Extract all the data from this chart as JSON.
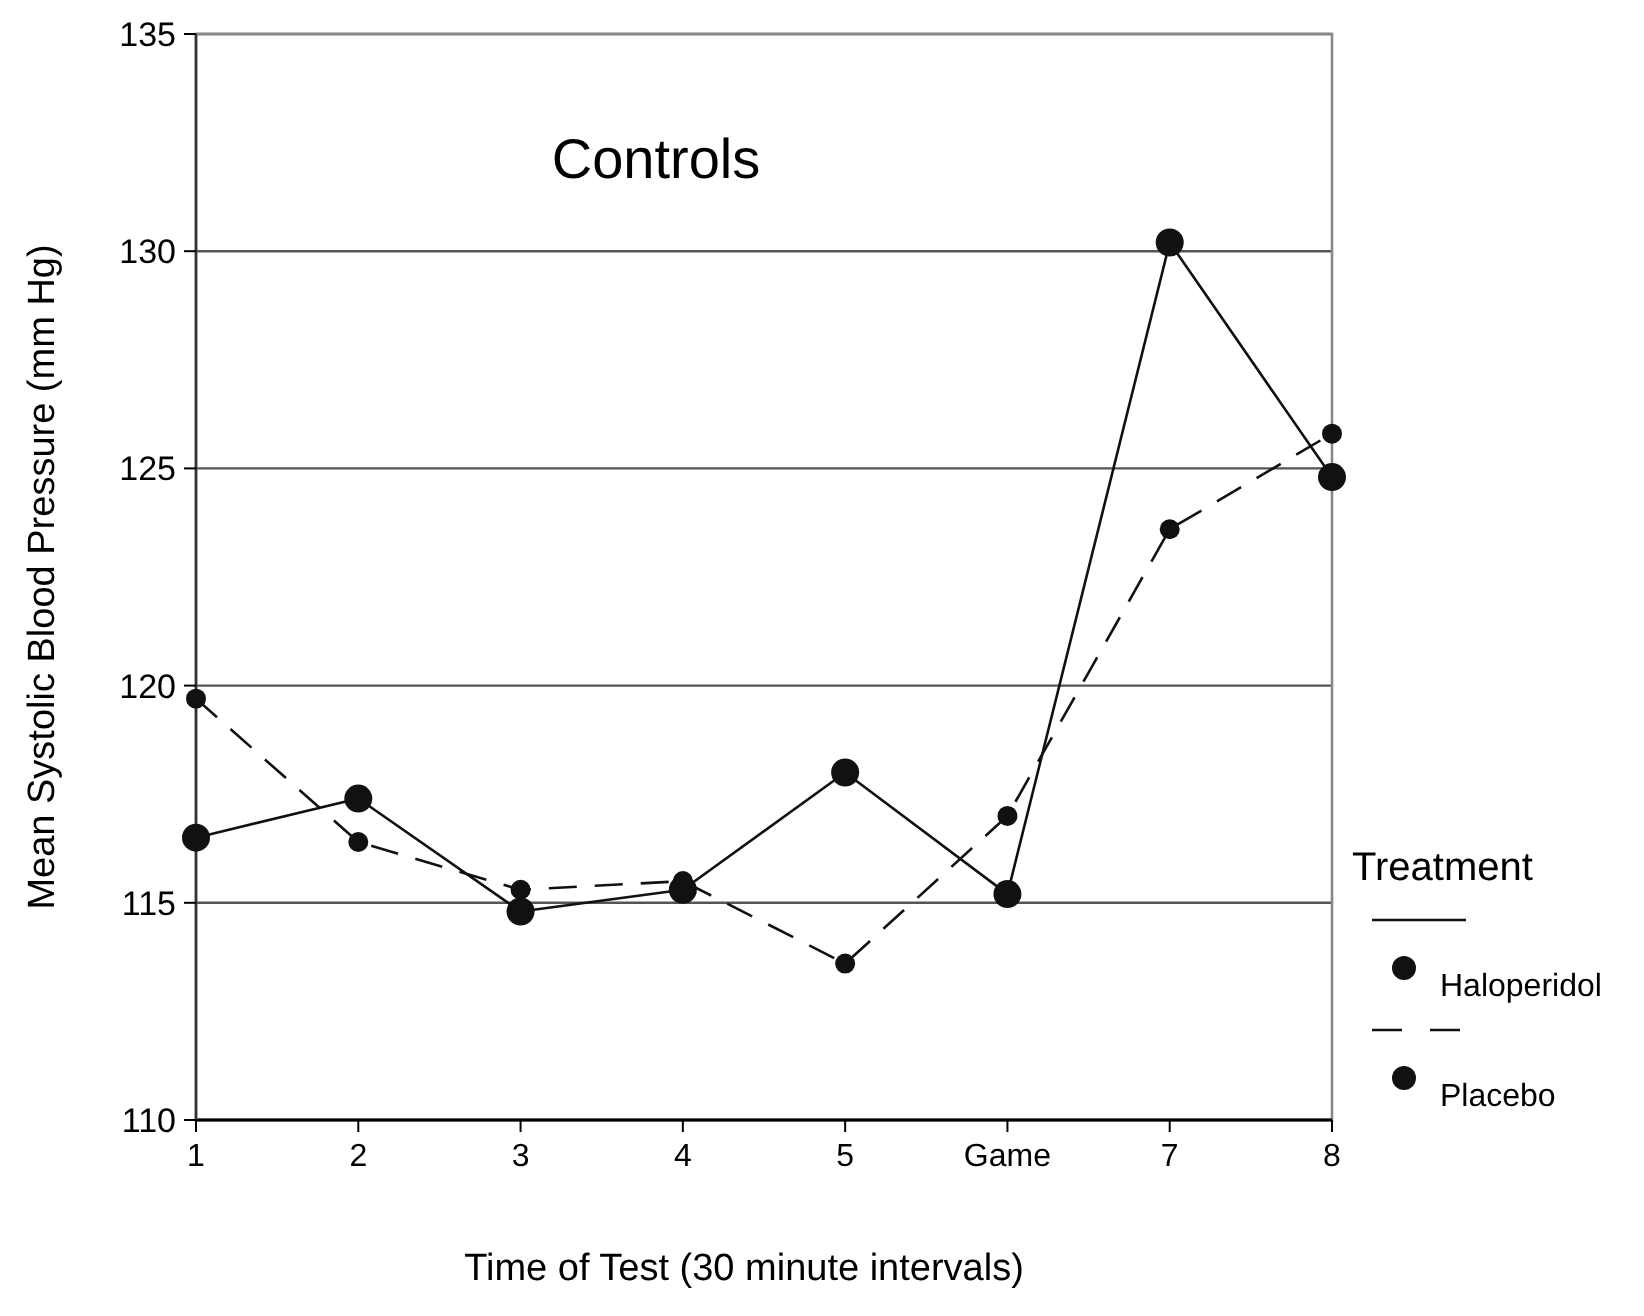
{
  "chart_data": {
    "type": "line",
    "title": "Controls",
    "xlabel": "Time of Test (30 minute intervals)",
    "ylabel": "Mean Systolic Blood Pressure (mm Hg)",
    "legend_title": "Treatment",
    "categories": [
      "1",
      "2",
      "3",
      "4",
      "5",
      "Game",
      "7",
      "8"
    ],
    "series": [
      {
        "name": "Haloperidol",
        "color": "#111111",
        "line_style": "solid",
        "values": [
          116.5,
          117.4,
          114.8,
          115.3,
          118.0,
          115.2,
          130.2,
          124.8
        ]
      },
      {
        "name": "Placebo",
        "color": "#111111",
        "line_style": "dashed",
        "values": [
          119.7,
          116.4,
          115.3,
          115.5,
          113.6,
          117.0,
          123.6,
          125.8
        ]
      }
    ],
    "ylim": [
      110,
      135
    ],
    "yticks": [
      110,
      115,
      120,
      125,
      130,
      135
    ],
    "grid": "y",
    "legend": "right",
    "marker": "circle"
  }
}
